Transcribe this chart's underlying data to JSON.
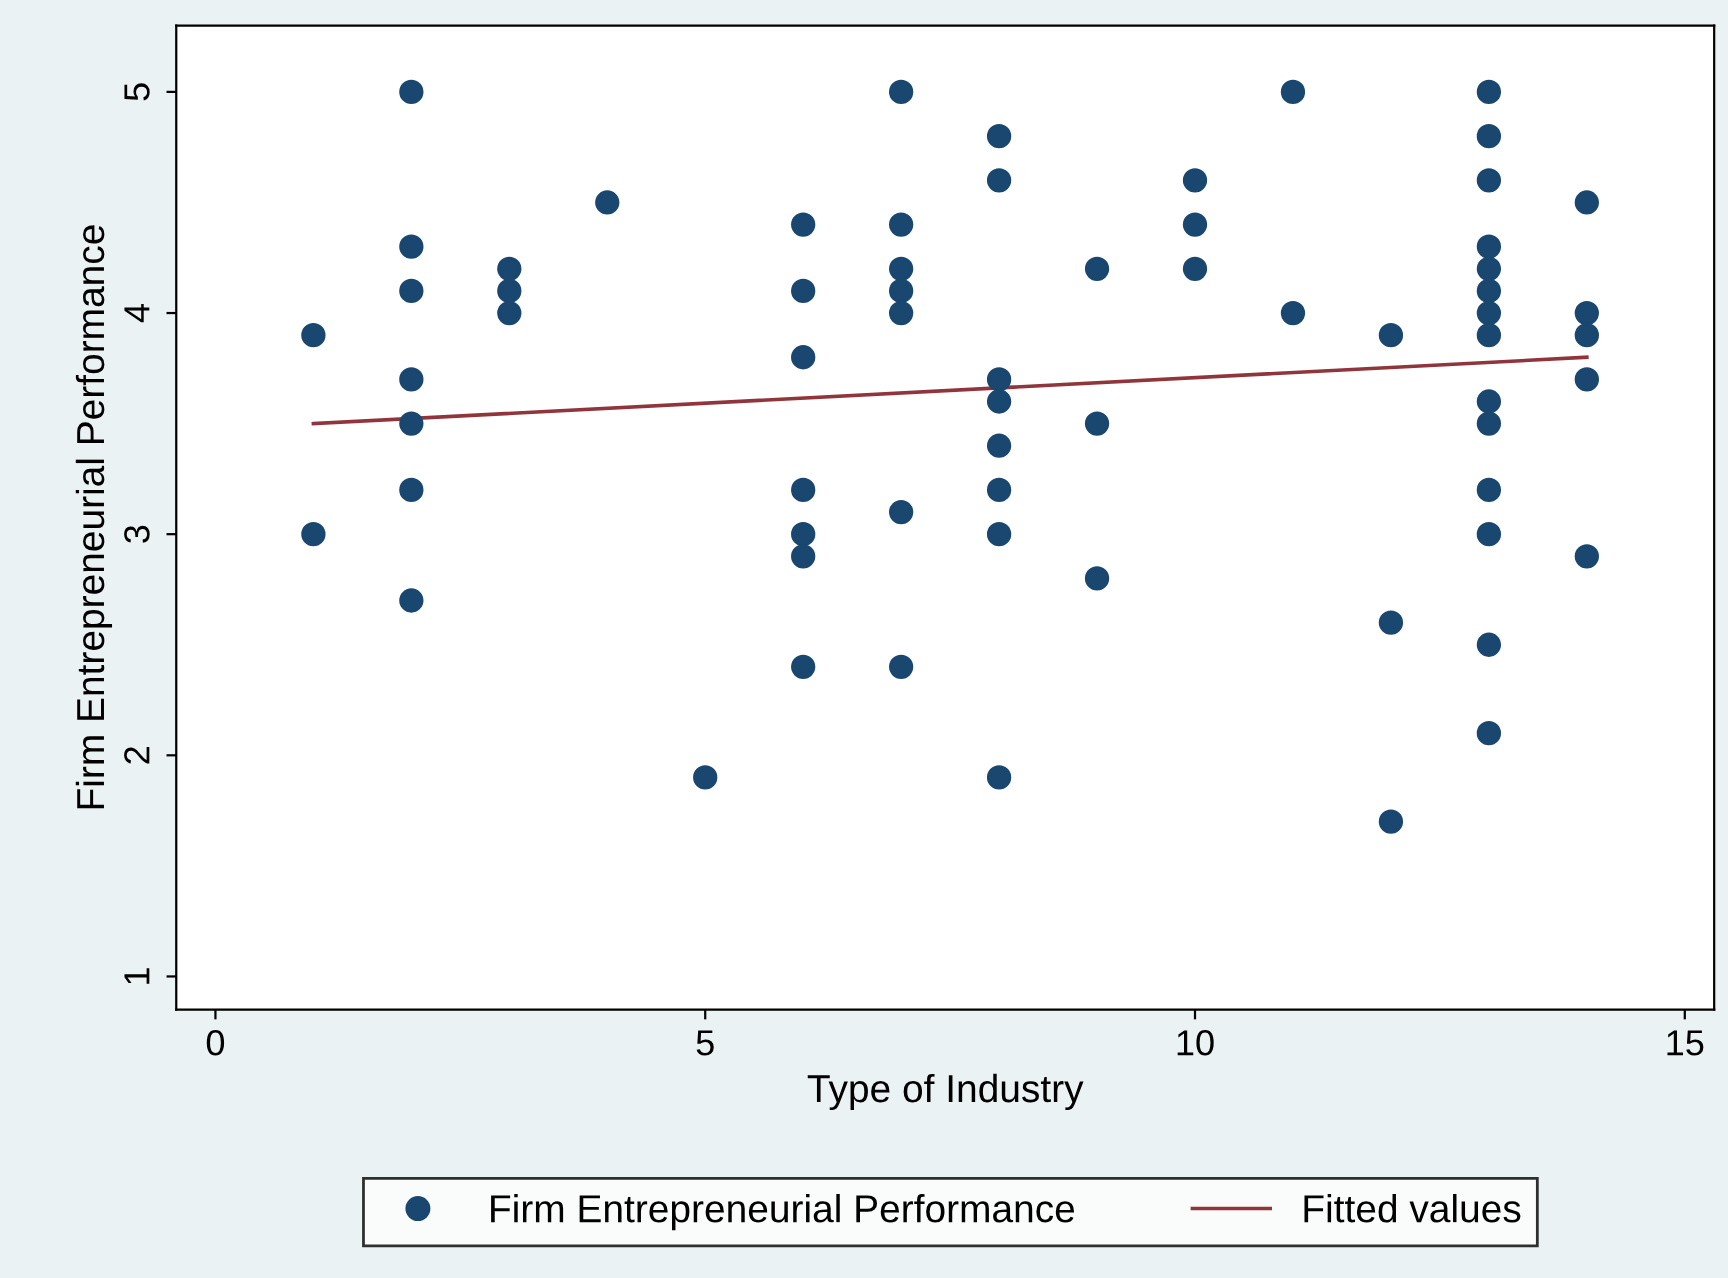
{
  "chart_data": {
    "type": "scatter",
    "xlabel": "Type of Industry",
    "ylabel": "Firm Entrepreneurial Performance",
    "xlim": [
      -0.4,
      15.3
    ],
    "ylim": [
      0.85,
      5.3
    ],
    "xticks": [
      0,
      5,
      10,
      15
    ],
    "yticks": [
      1,
      2,
      3,
      4,
      5
    ],
    "grid": false,
    "legend": "bottom",
    "series": [
      {
        "name": "Firm Entrepreneurial Performance",
        "marker": "circle",
        "color": "#1a476f",
        "x": [
          1,
          1,
          2,
          2,
          2,
          2,
          2,
          2,
          2,
          3,
          3,
          3,
          4,
          5,
          6,
          6,
          6,
          6,
          6,
          6,
          6,
          7,
          7,
          7,
          7,
          7,
          7,
          7,
          8,
          8,
          8,
          8,
          8,
          8,
          8,
          8,
          9,
          9,
          9,
          10,
          10,
          10,
          11,
          11,
          12,
          12,
          12,
          13,
          13,
          13,
          13,
          13,
          13,
          13,
          13,
          13,
          13,
          13,
          13,
          13,
          13,
          14,
          14,
          14,
          14,
          14
        ],
        "values": [
          3.9,
          3.0,
          5.0,
          4.3,
          4.1,
          3.7,
          3.5,
          3.2,
          2.7,
          4.2,
          4.1,
          4.0,
          4.5,
          1.9,
          4.4,
          4.1,
          3.8,
          3.2,
          3.0,
          2.9,
          2.4,
          5.0,
          4.4,
          4.2,
          4.1,
          4.0,
          3.1,
          2.4,
          4.8,
          4.6,
          3.7,
          3.6,
          3.4,
          3.2,
          3.0,
          1.9,
          4.2,
          3.5,
          2.8,
          4.6,
          4.4,
          4.2,
          5.0,
          4.0,
          3.9,
          2.6,
          1.7,
          5.0,
          4.8,
          4.6,
          4.3,
          4.2,
          4.1,
          4.0,
          3.9,
          3.6,
          3.5,
          3.2,
          3.0,
          2.5,
          2.1,
          4.5,
          4.0,
          3.9,
          3.7,
          2.9
        ]
      },
      {
        "name": "Fitted values",
        "type": "line",
        "color": "#90353b",
        "line_style": "solid",
        "x": [
          1,
          14
        ],
        "values": [
          3.5,
          3.8
        ]
      }
    ]
  }
}
